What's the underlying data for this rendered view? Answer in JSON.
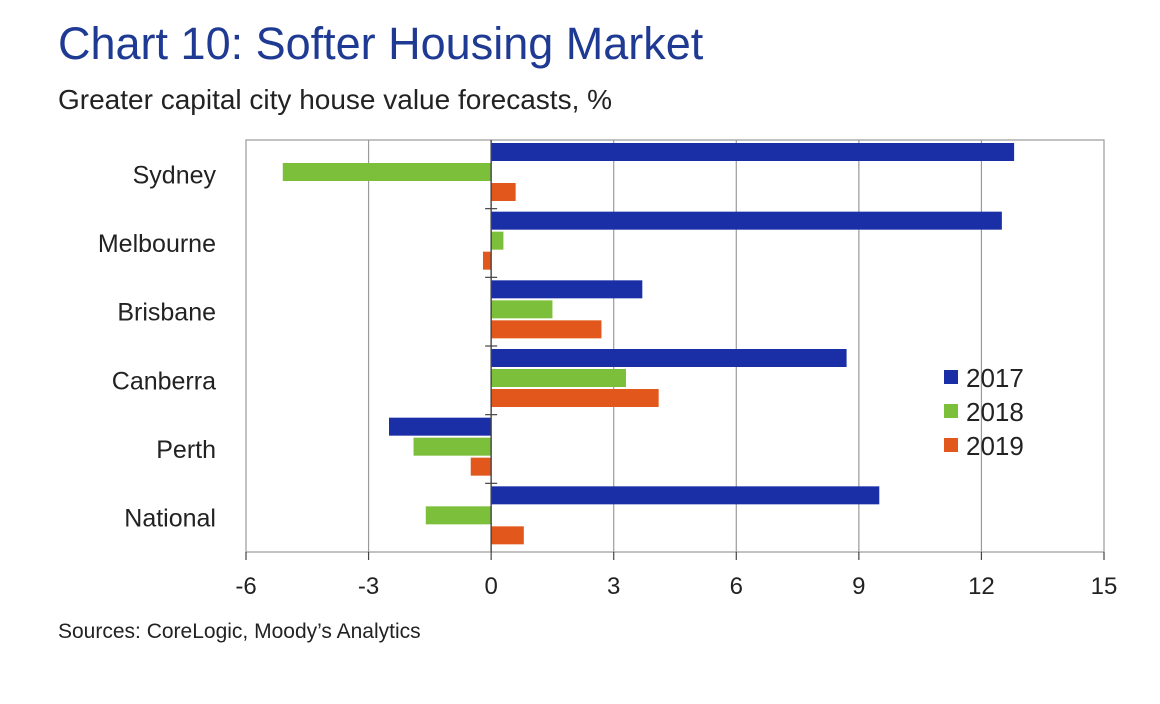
{
  "title": "Chart 10: Softer Housing Market",
  "subtitle": "Greater capital city house value forecasts, %",
  "source": "Sources: CoreLogic, Moody’s Analytics",
  "colors": {
    "2017": "#1a2fa5",
    "2018": "#7cbf3a",
    "2019": "#e2581c",
    "grid": "#9a9a9a",
    "axis": "#444444"
  },
  "chart_data": {
    "type": "bar",
    "orientation": "horizontal",
    "categories": [
      "Sydney",
      "Melbourne",
      "Brisbane",
      "Canberra",
      "Perth",
      "National"
    ],
    "series": [
      {
        "name": "2017",
        "values": [
          12.8,
          12.5,
          3.7,
          8.7,
          -2.5,
          9.5
        ]
      },
      {
        "name": "2018",
        "values": [
          -5.1,
          0.3,
          1.5,
          3.3,
          -1.9,
          -1.6
        ]
      },
      {
        "name": "2019",
        "values": [
          0.6,
          -0.2,
          2.7,
          4.1,
          -0.5,
          0.8
        ]
      }
    ],
    "xlim": [
      -6,
      15
    ],
    "xticks": [
      "-6",
      "-3",
      "0",
      "3",
      "6",
      "9",
      "12",
      "15"
    ],
    "grid": "vertical",
    "legend": "right"
  }
}
